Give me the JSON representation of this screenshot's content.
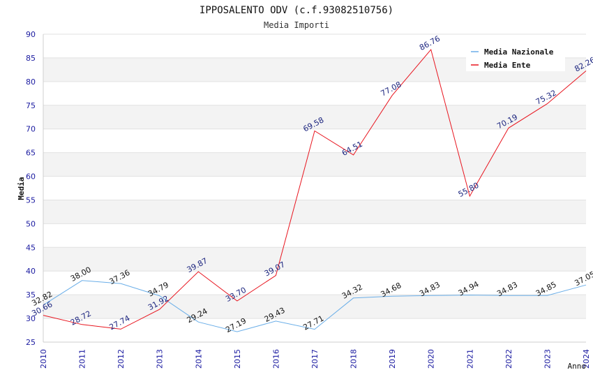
{
  "chart_data": {
    "type": "line",
    "title": "IPPOSALENTO ODV (c.f.93082510756)",
    "subtitle": "Media Importi",
    "xlabel": "Anno",
    "ylabel": "Media",
    "ylim": [
      25,
      90
    ],
    "y_ticks": [
      25,
      30,
      35,
      40,
      45,
      50,
      55,
      60,
      65,
      70,
      75,
      80,
      85,
      90
    ],
    "categories": [
      "2010",
      "2011",
      "2012",
      "2013",
      "2014",
      "2015",
      "2016",
      "2017",
      "2018",
      "2019",
      "2020",
      "2021",
      "2022",
      "2023",
      "2024"
    ],
    "legend_position": "top-right",
    "series": [
      {
        "name": "Media Nazionale",
        "color": "#6aaee8",
        "label_color": "#111111",
        "values": [
          32.82,
          38.0,
          37.36,
          34.79,
          29.24,
          27.19,
          29.43,
          27.71,
          34.32,
          34.68,
          34.83,
          34.94,
          34.83,
          34.85,
          37.05
        ],
        "labels": [
          "32.82",
          "38.00",
          "37.36",
          "34.79",
          "29.24",
          "27.19",
          "29.43",
          "27.71",
          "34.32",
          "34.68",
          "34.83",
          "34.94",
          "34.83",
          "34.85",
          "37.05"
        ]
      },
      {
        "name": "Media Ente",
        "color": "#e8141e",
        "label_color": "#1a237e",
        "values": [
          30.66,
          28.72,
          27.74,
          31.92,
          39.87,
          33.7,
          39.07,
          69.58,
          64.51,
          77.08,
          86.76,
          55.8,
          70.19,
          75.32,
          82.26
        ],
        "labels": [
          "30.66",
          "28.72",
          "27.74",
          "31.92",
          "39.87",
          "33.70",
          "39.07",
          "69.58",
          "64.51",
          "77.08",
          "86.76",
          "55.80",
          "70.19",
          "75.32",
          "82.26"
        ]
      }
    ]
  }
}
